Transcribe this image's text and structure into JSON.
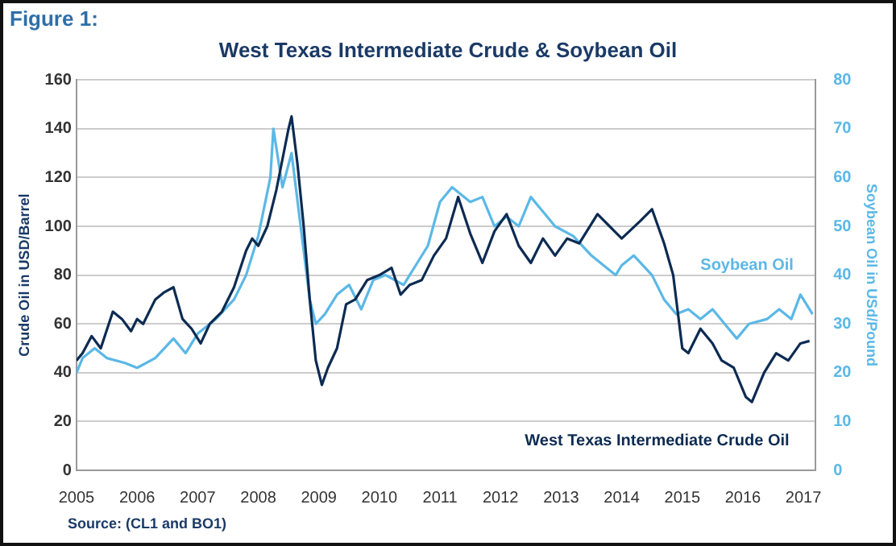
{
  "chart_data": {
    "type": "line",
    "title": "West Texas Intermediate Crude & Soybean Oil",
    "ylabel": "Crude Oil in USD/Barrel",
    "y2label": "Soybean Oil in USd/Pound",
    "annotations": [
      "Figure 1:",
      "Source: (CL1 and BO1)"
    ],
    "xlim": [
      2005,
      2017.2
    ],
    "xticks": [
      2005,
      2006,
      2007,
      2008,
      2009,
      2010,
      2011,
      2012,
      2013,
      2014,
      2015,
      2016,
      2017
    ],
    "ylim": [
      0,
      160
    ],
    "yticks": [
      0,
      20,
      40,
      60,
      80,
      100,
      120,
      140,
      160
    ],
    "y2lim": [
      0,
      80
    ],
    "y2ticks": [
      0,
      10,
      20,
      30,
      40,
      50,
      60,
      70,
      80
    ],
    "grid": "y",
    "legend": false,
    "marker": "none",
    "line_style": "solid",
    "series": [
      {
        "name": "West Texas Intermediate Crude Oil",
        "color": "#0d2b52",
        "x": [
          2005.0,
          2005.1,
          2005.25,
          2005.4,
          2005.6,
          2005.75,
          2005.9,
          2006.0,
          2006.1,
          2006.3,
          2006.45,
          2006.6,
          2006.75,
          2006.9,
          2007.05,
          2007.2,
          2007.4,
          2007.6,
          2007.8,
          2007.9,
          2008.0,
          2008.15,
          2008.3,
          2008.5,
          2008.55,
          2008.65,
          2008.75,
          2008.85,
          2008.95,
          2009.05,
          2009.15,
          2009.3,
          2009.45,
          2009.6,
          2009.8,
          2010.0,
          2010.2,
          2010.35,
          2010.5,
          2010.7,
          2010.9,
          2011.1,
          2011.3,
          2011.5,
          2011.7,
          2011.9,
          2012.1,
          2012.3,
          2012.5,
          2012.7,
          2012.9,
          2013.1,
          2013.3,
          2013.6,
          2013.8,
          2014.0,
          2014.3,
          2014.5,
          2014.7,
          2014.85,
          2015.0,
          2015.1,
          2015.3,
          2015.5,
          2015.65,
          2015.85,
          2016.05,
          2016.15,
          2016.35,
          2016.55,
          2016.75,
          2016.95,
          2017.1
        ],
        "values": [
          45,
          48,
          55,
          50,
          65,
          62,
          57,
          62,
          60,
          70,
          73,
          75,
          62,
          58,
          52,
          60,
          65,
          75,
          90,
          95,
          92,
          100,
          115,
          140,
          145,
          125,
          100,
          70,
          45,
          35,
          42,
          50,
          68,
          70,
          78,
          80,
          83,
          72,
          76,
          78,
          88,
          95,
          112,
          97,
          85,
          98,
          105,
          92,
          85,
          95,
          88,
          95,
          93,
          105,
          100,
          95,
          102,
          107,
          93,
          80,
          50,
          48,
          58,
          52,
          45,
          42,
          30,
          28,
          40,
          48,
          45,
          52,
          53
        ]
      },
      {
        "name": "Soybean Oil",
        "color": "#5bb8e6",
        "axis": "y2",
        "x": [
          2005.0,
          2005.1,
          2005.3,
          2005.5,
          2005.8,
          2006.0,
          2006.3,
          2006.6,
          2006.8,
          2007.0,
          2007.3,
          2007.6,
          2007.8,
          2008.0,
          2008.2,
          2008.25,
          2008.4,
          2008.55,
          2008.7,
          2008.85,
          2008.95,
          2009.1,
          2009.3,
          2009.5,
          2009.7,
          2009.9,
          2010.1,
          2010.4,
          2010.6,
          2010.8,
          2011.0,
          2011.2,
          2011.5,
          2011.7,
          2011.9,
          2012.1,
          2012.3,
          2012.5,
          2012.7,
          2012.9,
          2013.2,
          2013.5,
          2013.7,
          2013.9,
          2014.0,
          2014.2,
          2014.5,
          2014.7,
          2014.9,
          2015.1,
          2015.3,
          2015.5,
          2015.7,
          2015.9,
          2016.1,
          2016.4,
          2016.6,
          2016.8,
          2016.95,
          2017.05,
          2017.15
        ],
        "values": [
          20,
          23,
          25,
          23,
          22,
          21,
          23,
          27,
          24,
          28,
          31,
          35,
          40,
          48,
          60,
          70,
          58,
          65,
          50,
          35,
          30,
          32,
          36,
          38,
          33,
          39,
          40,
          38,
          42,
          46,
          55,
          58,
          55,
          56,
          50,
          52,
          50,
          56,
          53,
          50,
          48,
          44,
          42,
          40,
          42,
          44,
          40,
          35,
          32,
          33,
          31,
          33,
          30,
          27,
          30,
          31,
          33,
          31,
          36,
          34,
          32
        ]
      }
    ]
  }
}
